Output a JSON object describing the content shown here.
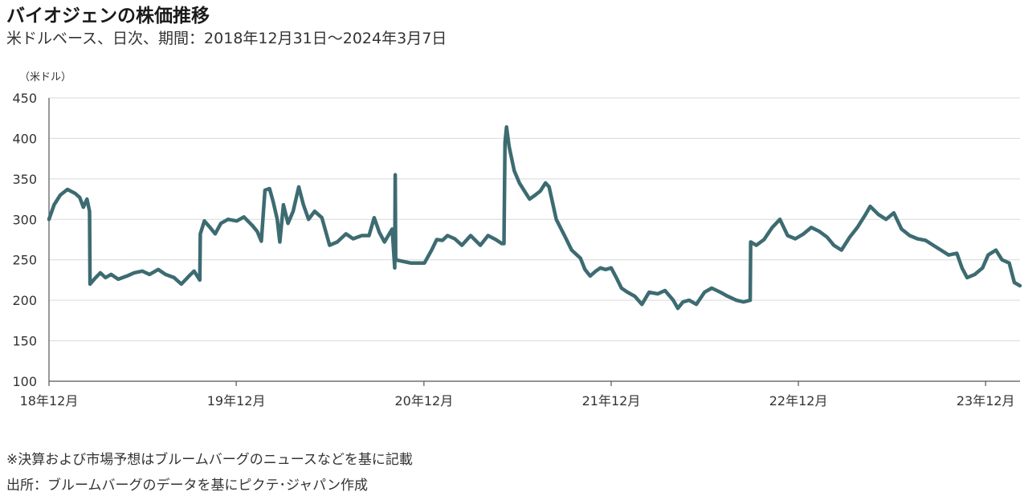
{
  "header": {
    "title": "バイオジェンの株価推移",
    "subtitle": "米ドルベース、日次、期間：2018年12月31日～2024年3月7日"
  },
  "notes": {
    "note1": "※決算および市場予想はブルームバーグのニュースなどを基に記載",
    "source": "出所：ブルームバーグのデータを基にピクテ･ジャパン作成"
  },
  "colors": {
    "line": "#3d6b72",
    "grid": "#d9d9d9",
    "axis": "#555555"
  },
  "chart_data": {
    "type": "line",
    "title": "バイオジェンの株価推移",
    "ylabel": "（米ドル）",
    "xlabel": "",
    "ylim": [
      100,
      450
    ],
    "yticks": [
      100,
      150,
      200,
      250,
      300,
      350,
      400,
      450
    ],
    "xlim": [
      "2018-12-31",
      "2024-03-07"
    ],
    "xticks": [
      {
        "date": "2018-12-31",
        "label": "18年12月"
      },
      {
        "date": "2019-12-31",
        "label": "19年12月"
      },
      {
        "date": "2020-12-31",
        "label": "20年12月"
      },
      {
        "date": "2021-12-31",
        "label": "21年12月"
      },
      {
        "date": "2022-12-31",
        "label": "22年12月"
      },
      {
        "date": "2023-12-31",
        "label": "23年12月"
      }
    ],
    "grid": true,
    "legend": "none",
    "series": [
      {
        "points": [
          [
            "2018-12-31",
            300
          ],
          [
            "2019-01-10",
            318
          ],
          [
            "2019-01-22",
            330
          ],
          [
            "2019-02-05",
            337
          ],
          [
            "2019-02-20",
            332
          ],
          [
            "2019-03-01",
            327
          ],
          [
            "2019-03-08",
            315
          ],
          [
            "2019-03-15",
            325
          ],
          [
            "2019-03-20",
            310
          ],
          [
            "2019-03-21",
            220
          ],
          [
            "2019-04-01",
            228
          ],
          [
            "2019-04-10",
            234
          ],
          [
            "2019-04-20",
            228
          ],
          [
            "2019-05-01",
            232
          ],
          [
            "2019-05-15",
            226
          ],
          [
            "2019-06-01",
            230
          ],
          [
            "2019-06-15",
            234
          ],
          [
            "2019-07-01",
            236
          ],
          [
            "2019-07-15",
            232
          ],
          [
            "2019-08-01",
            238
          ],
          [
            "2019-08-15",
            232
          ],
          [
            "2019-09-01",
            228
          ],
          [
            "2019-09-15",
            220
          ],
          [
            "2019-09-30",
            230
          ],
          [
            "2019-10-10",
            236
          ],
          [
            "2019-10-20",
            226
          ],
          [
            "2019-10-21",
            225
          ],
          [
            "2019-10-22",
            282
          ],
          [
            "2019-10-30",
            298
          ],
          [
            "2019-11-10",
            290
          ],
          [
            "2019-11-20",
            282
          ],
          [
            "2019-12-01",
            295
          ],
          [
            "2019-12-15",
            300
          ],
          [
            "2020-01-01",
            298
          ],
          [
            "2020-01-15",
            303
          ],
          [
            "2020-02-01",
            292
          ],
          [
            "2020-02-10",
            285
          ],
          [
            "2020-02-18",
            273
          ],
          [
            "2020-02-25",
            336
          ],
          [
            "2020-03-05",
            338
          ],
          [
            "2020-03-12",
            322
          ],
          [
            "2020-03-20",
            300
          ],
          [
            "2020-03-25",
            272
          ],
          [
            "2020-04-01",
            318
          ],
          [
            "2020-04-10",
            295
          ],
          [
            "2020-04-20",
            310
          ],
          [
            "2020-05-01",
            340
          ],
          [
            "2020-05-10",
            318
          ],
          [
            "2020-05-20",
            300
          ],
          [
            "2020-06-01",
            310
          ],
          [
            "2020-06-15",
            302
          ],
          [
            "2020-06-30",
            268
          ],
          [
            "2020-07-15",
            272
          ],
          [
            "2020-08-01",
            282
          ],
          [
            "2020-08-15",
            276
          ],
          [
            "2020-09-01",
            280
          ],
          [
            "2020-09-15",
            280
          ],
          [
            "2020-09-25",
            302
          ],
          [
            "2020-10-05",
            284
          ],
          [
            "2020-10-15",
            272
          ],
          [
            "2020-10-30",
            288
          ],
          [
            "2020-11-04",
            240
          ],
          [
            "2020-11-05",
            355
          ],
          [
            "2020-11-06",
            250
          ],
          [
            "2020-11-20",
            248
          ],
          [
            "2020-12-05",
            246
          ],
          [
            "2020-12-20",
            246
          ],
          [
            "2021-01-01",
            246
          ],
          [
            "2021-01-15",
            262
          ],
          [
            "2021-01-25",
            275
          ],
          [
            "2021-02-05",
            274
          ],
          [
            "2021-02-15",
            280
          ],
          [
            "2021-03-01",
            276
          ],
          [
            "2021-03-15",
            268
          ],
          [
            "2021-04-01",
            280
          ],
          [
            "2021-04-20",
            268
          ],
          [
            "2021-05-05",
            280
          ],
          [
            "2021-05-20",
            275
          ],
          [
            "2021-06-01",
            270
          ],
          [
            "2021-06-05",
            270
          ],
          [
            "2021-06-07",
            395
          ],
          [
            "2021-06-10",
            414
          ],
          [
            "2021-06-15",
            390
          ],
          [
            "2021-06-25",
            360
          ],
          [
            "2021-07-05",
            345
          ],
          [
            "2021-07-15",
            335
          ],
          [
            "2021-07-25",
            325
          ],
          [
            "2021-08-05",
            330
          ],
          [
            "2021-08-15",
            335
          ],
          [
            "2021-08-25",
            345
          ],
          [
            "2021-09-01",
            340
          ],
          [
            "2021-09-15",
            300
          ],
          [
            "2021-10-01",
            280
          ],
          [
            "2021-10-15",
            262
          ],
          [
            "2021-11-01",
            252
          ],
          [
            "2021-11-10",
            238
          ],
          [
            "2021-11-20",
            230
          ],
          [
            "2021-12-01",
            236
          ],
          [
            "2021-12-10",
            240
          ],
          [
            "2021-12-20",
            238
          ],
          [
            "2021-12-31",
            240
          ],
          [
            "2022-01-10",
            228
          ],
          [
            "2022-01-20",
            215
          ],
          [
            "2022-02-01",
            210
          ],
          [
            "2022-02-15",
            205
          ],
          [
            "2022-03-01",
            195
          ],
          [
            "2022-03-15",
            210
          ],
          [
            "2022-04-01",
            208
          ],
          [
            "2022-04-15",
            212
          ],
          [
            "2022-05-01",
            200
          ],
          [
            "2022-05-10",
            190
          ],
          [
            "2022-05-20",
            198
          ],
          [
            "2022-06-01",
            200
          ],
          [
            "2022-06-15",
            195
          ],
          [
            "2022-07-01",
            210
          ],
          [
            "2022-07-15",
            215
          ],
          [
            "2022-08-01",
            210
          ],
          [
            "2022-08-15",
            205
          ],
          [
            "2022-09-01",
            200
          ],
          [
            "2022-09-15",
            198
          ],
          [
            "2022-09-28",
            200
          ],
          [
            "2022-09-29",
            272
          ],
          [
            "2022-10-10",
            268
          ],
          [
            "2022-10-25",
            275
          ],
          [
            "2022-11-10",
            290
          ],
          [
            "2022-11-25",
            300
          ],
          [
            "2022-12-10",
            280
          ],
          [
            "2022-12-25",
            276
          ],
          [
            "2023-01-10",
            282
          ],
          [
            "2023-01-25",
            290
          ],
          [
            "2023-02-10",
            285
          ],
          [
            "2023-02-25",
            278
          ],
          [
            "2023-03-10",
            268
          ],
          [
            "2023-03-25",
            262
          ],
          [
            "2023-04-10",
            278
          ],
          [
            "2023-04-25",
            290
          ],
          [
            "2023-05-10",
            305
          ],
          [
            "2023-05-20",
            316
          ],
          [
            "2023-06-05",
            306
          ],
          [
            "2023-06-20",
            300
          ],
          [
            "2023-07-05",
            308
          ],
          [
            "2023-07-20",
            288
          ],
          [
            "2023-08-05",
            280
          ],
          [
            "2023-08-20",
            276
          ],
          [
            "2023-09-05",
            274
          ],
          [
            "2023-09-20",
            268
          ],
          [
            "2023-10-05",
            262
          ],
          [
            "2023-10-20",
            256
          ],
          [
            "2023-11-05",
            258
          ],
          [
            "2023-11-15",
            240
          ],
          [
            "2023-11-25",
            228
          ],
          [
            "2023-12-10",
            232
          ],
          [
            "2023-12-25",
            240
          ],
          [
            "2024-01-05",
            256
          ],
          [
            "2024-01-20",
            262
          ],
          [
            "2024-02-01",
            250
          ],
          [
            "2024-02-15",
            246
          ],
          [
            "2024-02-25",
            222
          ],
          [
            "2024-03-07",
            218
          ]
        ]
      }
    ]
  }
}
